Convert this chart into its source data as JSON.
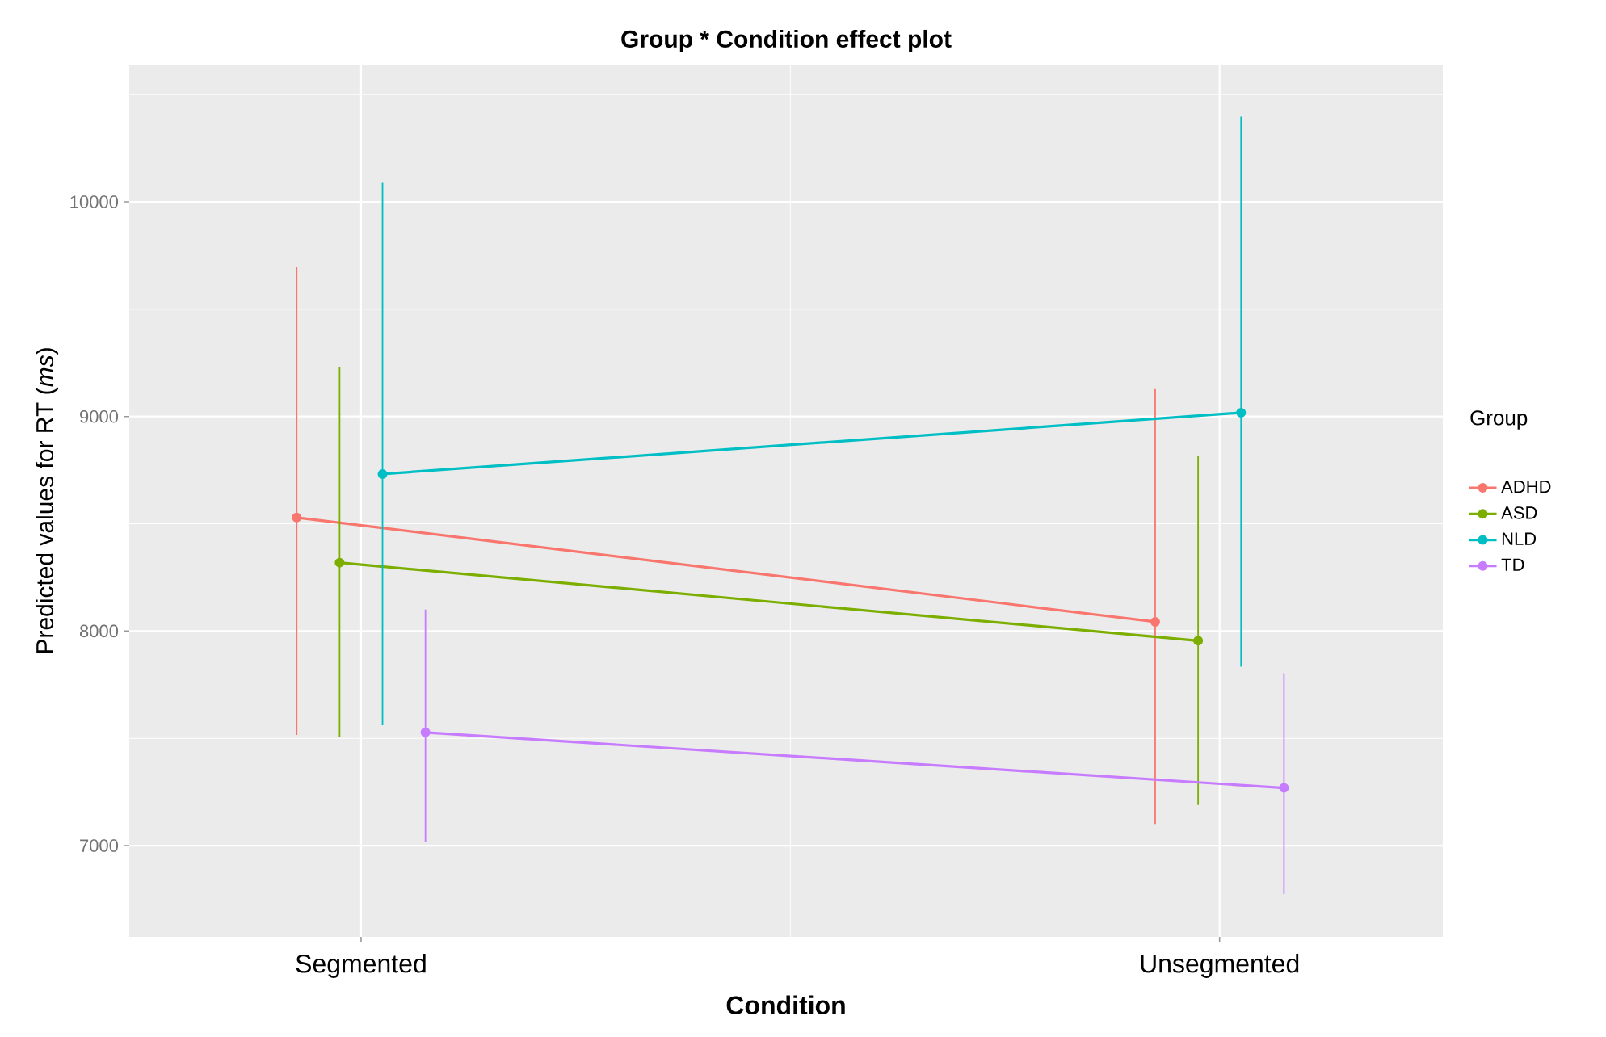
{
  "chart_data": {
    "type": "line",
    "title": "Group * Condition effect plot",
    "xlabel": "Condition",
    "ylabel": "Predicted values for RT (*ms*)",
    "legend_title": "Group",
    "categories": [
      "Segmented",
      "Unsegmented"
    ],
    "series": [
      {
        "name": "ADHD",
        "color": "#f8766d",
        "values": [
          8529,
          8043
        ],
        "errors": [
          [
            7516,
            9698
          ],
          [
            7101,
            9128
          ]
        ]
      },
      {
        "name": "ASD",
        "color": "#7cae00",
        "values": [
          8319,
          7955
        ],
        "errors": [
          [
            7508,
            9231
          ],
          [
            7189,
            8814
          ]
        ]
      },
      {
        "name": "NLD",
        "color": "#00bfc4",
        "values": [
          8732,
          9018
        ],
        "errors": [
          [
            7561,
            10092
          ],
          [
            7834,
            10397
          ]
        ]
      },
      {
        "name": "TD",
        "color": "#c77cff",
        "values": [
          7528,
          7269
        ],
        "errors": [
          [
            7015,
            8100
          ],
          [
            6774,
            7804
          ]
        ]
      }
    ],
    "ylim": [
      6575,
      10640
    ],
    "yticks": [
      7000,
      8000,
      9000,
      10000
    ],
    "grid": true,
    "legend": "right",
    "marker": "circle",
    "line_style": "solid"
  }
}
